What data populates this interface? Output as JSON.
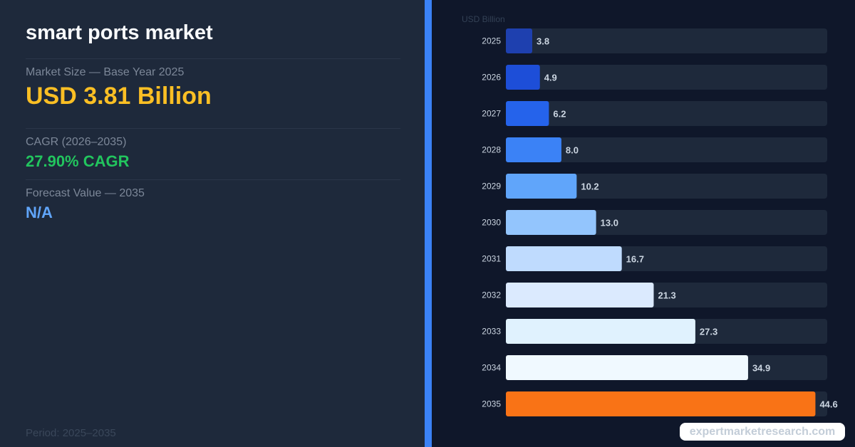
{
  "header": {
    "title": "smart ports market"
  },
  "metrics": {
    "market_size_label": "Market Size — Base Year 2025",
    "market_size_value": "USD 3.81 Billion",
    "cagr_label": "CAGR (2026–2035)",
    "cagr_value": "27.90% CAGR",
    "forecast_label": "Forecast Value — 2035",
    "forecast_value": "N/A"
  },
  "footer": {
    "period": "Period: 2025–2035",
    "watermark": "expertmarketresearch.com"
  },
  "colors": {
    "accent_divider": "#3b82f6",
    "highlight_bar": "#f97316",
    "track": "#1e293b",
    "bar_palette": [
      "#1e40af",
      "#1d4ed8",
      "#2563eb",
      "#3b82f6",
      "#60a5fa",
      "#93c5fd",
      "#bfdbfe",
      "#dbeafe",
      "#e0f2fe",
      "#f0f9ff",
      "#f97316"
    ]
  },
  "chart_data": {
    "type": "bar",
    "orientation": "horizontal",
    "ylabel": "USD Billion",
    "categories": [
      "2025",
      "2026",
      "2027",
      "2028",
      "2029",
      "2030",
      "2031",
      "2032",
      "2033",
      "2034",
      "2035"
    ],
    "values": [
      3.8,
      4.9,
      6.2,
      8.0,
      10.2,
      13.0,
      16.7,
      21.3,
      27.3,
      34.9,
      44.6
    ],
    "value_labels": [
      "3.8",
      "4.9",
      "6.2",
      "8.0",
      "10.2",
      "13.0",
      "16.7",
      "21.3",
      "27.3",
      "34.9",
      "44.6"
    ],
    "xlim": [
      0,
      46.3
    ],
    "grid": false,
    "legend": "none"
  }
}
